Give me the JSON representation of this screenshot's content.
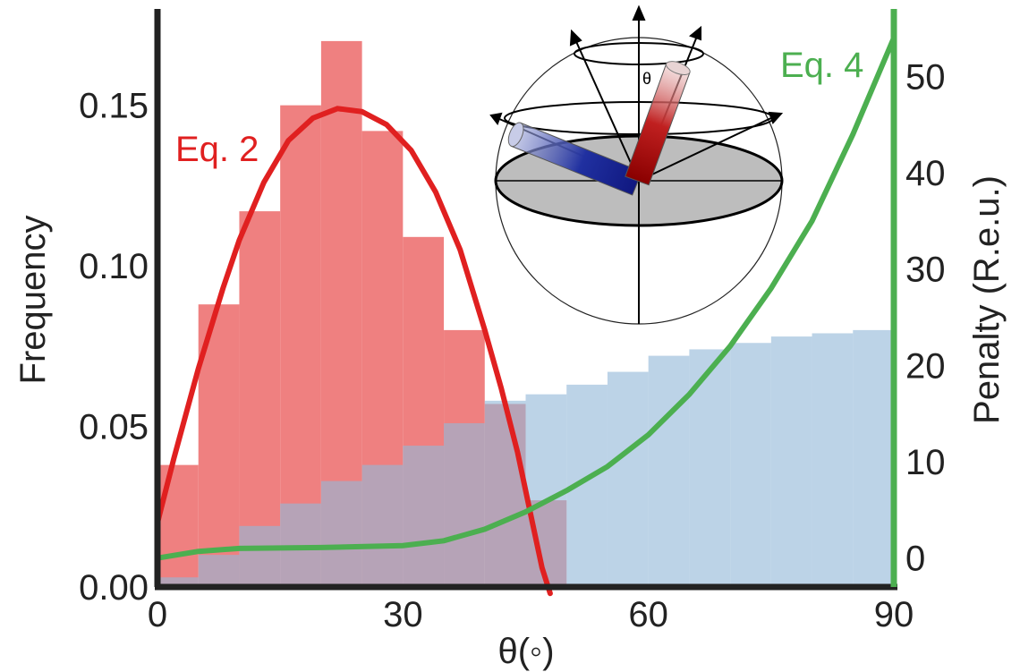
{
  "chart_data": {
    "type": "bar",
    "xlabel": "θ(◦)",
    "ylabel_left": "Frequency",
    "ylabel_right": "Penalty (R.e.u.)",
    "xlim": [
      0,
      90
    ],
    "ylim_left": [
      0,
      0.18
    ],
    "ylim_right": [
      -3,
      57
    ],
    "xticks": [
      "0",
      "30",
      "60",
      "90"
    ],
    "yticks_left": [
      "0.00",
      "0.05",
      "0.10",
      "0.15"
    ],
    "yticks_right": [
      "0",
      "10",
      "20",
      "30",
      "40",
      "50"
    ],
    "bin_edges": [
      0,
      5,
      10,
      15,
      20,
      25,
      30,
      35,
      40,
      45,
      50,
      55,
      60,
      65,
      70,
      75,
      80,
      85,
      90
    ],
    "series": [
      {
        "color": "#ef8080",
        "values": [
          0.038,
          0.088,
          0.117,
          0.15,
          0.17,
          0.142,
          0.109,
          0.08,
          0.057,
          0.027,
          0,
          0,
          0,
          0,
          0,
          0,
          0,
          0
        ]
      },
      {
        "color": "#93b8d8",
        "values": [
          0.003,
          0.01,
          0.019,
          0.026,
          0.033,
          0.038,
          0.044,
          0.051,
          0.058,
          0.06,
          0.063,
          0.067,
          0.072,
          0.074,
          0.076,
          0.078,
          0.079,
          0.08
        ]
      }
    ],
    "curves": [
      {
        "label": "Eq. 2",
        "color": "#e02020",
        "axis": "left",
        "points": [
          [
            0,
            0.02
          ],
          [
            2,
            0.04
          ],
          [
            5,
            0.068
          ],
          [
            8,
            0.093
          ],
          [
            10,
            0.108
          ],
          [
            13,
            0.126
          ],
          [
            16,
            0.139
          ],
          [
            19,
            0.146
          ],
          [
            22,
            0.149
          ],
          [
            25,
            0.148
          ],
          [
            28,
            0.144
          ],
          [
            31,
            0.136
          ],
          [
            34,
            0.123
          ],
          [
            37,
            0.105
          ],
          [
            40,
            0.08
          ],
          [
            42,
            0.062
          ],
          [
            44,
            0.042
          ],
          [
            46,
            0.018
          ],
          [
            47,
            0.006
          ],
          [
            48,
            -0.002
          ]
        ]
      },
      {
        "label": "Eq. 4",
        "color": "#4caf50",
        "axis": "right",
        "points": [
          [
            0,
            0
          ],
          [
            5,
            0.7
          ],
          [
            10,
            1.0
          ],
          [
            20,
            1.1
          ],
          [
            30,
            1.3
          ],
          [
            35,
            1.8
          ],
          [
            40,
            3.0
          ],
          [
            45,
            4.8
          ],
          [
            50,
            7.0
          ],
          [
            55,
            9.5
          ],
          [
            60,
            12.8
          ],
          [
            65,
            17.0
          ],
          [
            70,
            22.0
          ],
          [
            75,
            28.0
          ],
          [
            80,
            35.0
          ],
          [
            85,
            44.0
          ],
          [
            88,
            50.0
          ],
          [
            90,
            54.0
          ]
        ]
      }
    ],
    "inset_labels": [
      "θ"
    ]
  }
}
